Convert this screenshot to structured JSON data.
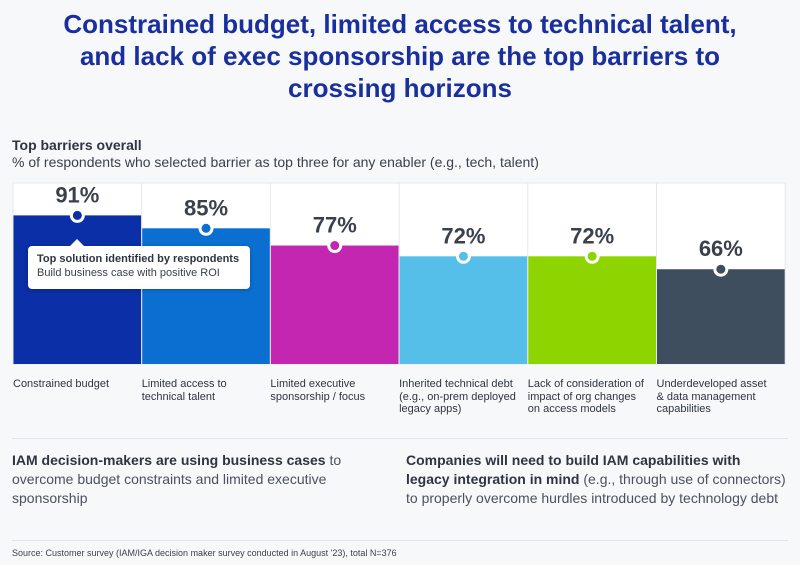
{
  "title": "Constrained budget, limited access to technical talent, and lack of exec sponsorship are the top barriers to crossing horizons",
  "subtitle_bold": "Top barriers overall",
  "subtitle": "% of respondents who selected barrier as top three for any enabler (e.g., tech, talent)",
  "tooltip": {
    "heading": "Top solution identified by respondents",
    "text": "Build business case with positive ROI"
  },
  "chart_data": {
    "type": "bar",
    "title": "Top barriers overall",
    "ylabel": "% of respondents",
    "categories": [
      "Constrained budget",
      "Limited access to technical talent",
      "Limited executive sponsorship / focus",
      "Inherited technical debt (e.g., on-prem deployed legacy apps)",
      "Lack of consideration of impact of org changes on access models",
      "Underdeveloped asset & data management capabilities"
    ],
    "values": [
      91,
      85,
      77,
      72,
      72,
      66
    ],
    "labels": [
      "91%",
      "85%",
      "77%",
      "72%",
      "72%",
      "66%"
    ],
    "colors": [
      "#0b2fa6",
      "#0b6fd2",
      "#c327b1",
      "#56bfe9",
      "#8ed400",
      "#3e4e5f"
    ],
    "ylim": [
      22,
      100
    ]
  },
  "notes": [
    {
      "bold": "IAM decision-makers are using business cases",
      "rest": " to overcome budget constraints and limited executive sponsorship"
    },
    {
      "bold": "Companies will need to build IAM capabilities with legacy integration in mind",
      "rest": " (e.g., through use of connectors) to properly overcome hurdles introduced by technology debt"
    }
  ],
  "source": "Source: Customer survey (IAM/IGA decision maker survey conducted in August '23), total N=376"
}
